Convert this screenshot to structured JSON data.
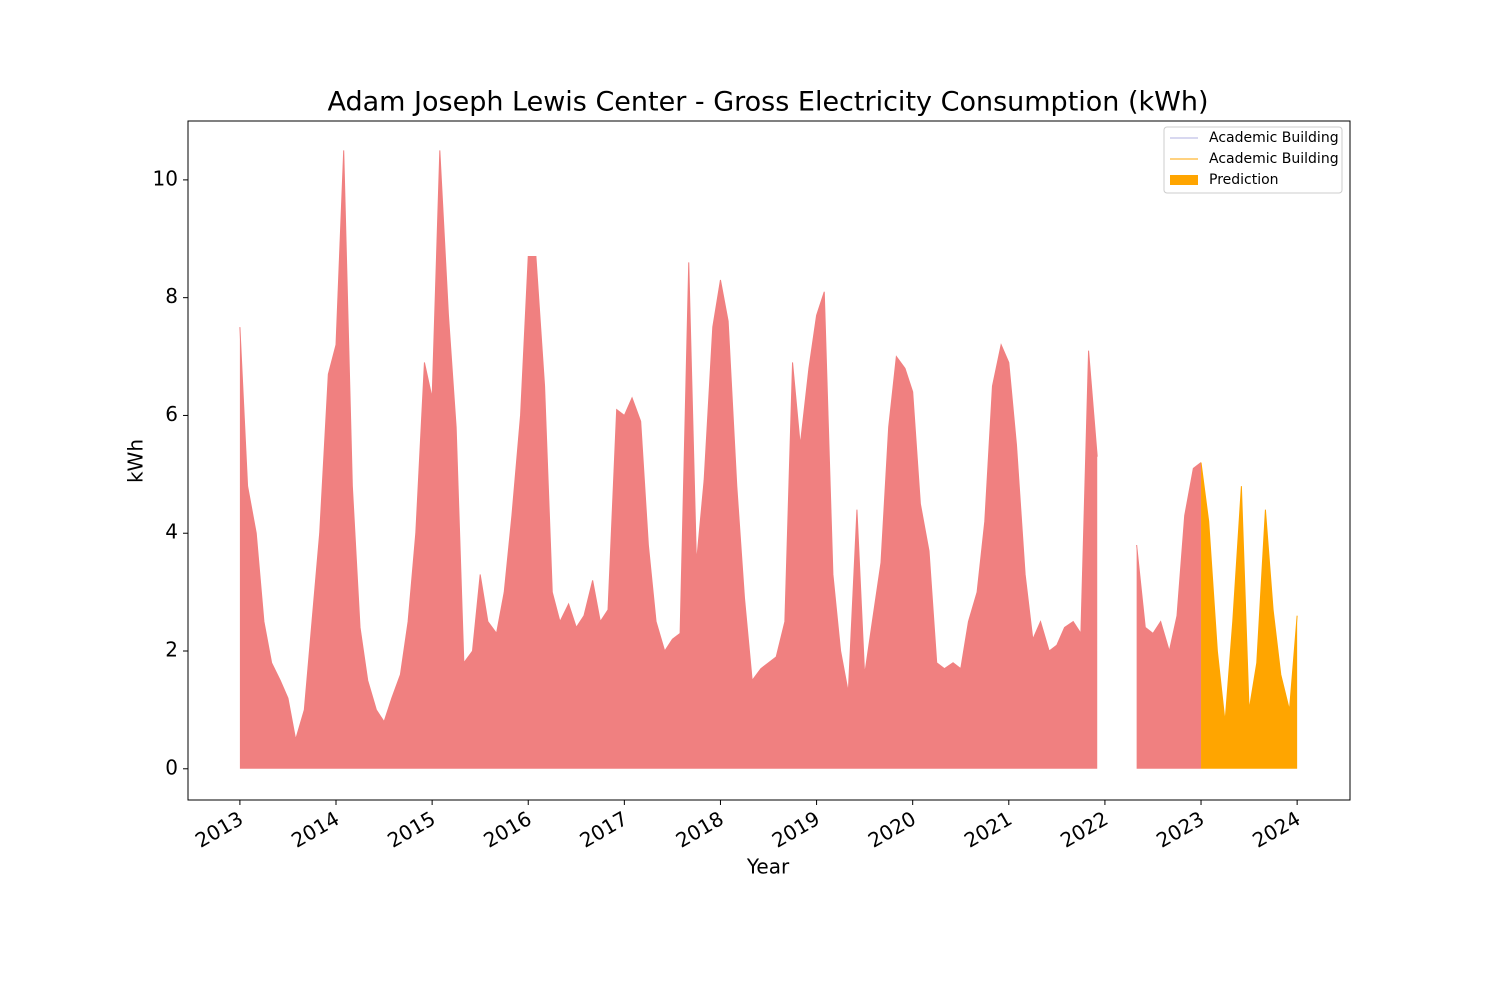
{
  "chart_data": {
    "type": "area",
    "title": "Adam Joseph Lewis Center - Gross Electricity Consumption (kWh)",
    "x_label": "Year",
    "y_label": "kWh",
    "xlim": [
      2012.46,
      2024.55
    ],
    "xticks": [
      2013,
      2014,
      2015,
      2016,
      2017,
      2018,
      2019,
      2020,
      2021,
      2022,
      2023,
      2024
    ],
    "ylim": [
      -0.53,
      11.0
    ],
    "yticks": [
      0,
      2,
      4,
      6,
      8,
      10
    ],
    "legend_position": "upper right",
    "legend": [
      {
        "name": "Academic Building",
        "color": "#b0b0e0",
        "style": "line"
      },
      {
        "name": "Academic Building",
        "color": "#ffa500",
        "style": "line"
      },
      {
        "name": "Prediction",
        "color": "#ffa500",
        "style": "patch"
      }
    ],
    "series": [
      {
        "color": "#f08080",
        "x": [
          2013.0,
          2013.08,
          2013.17,
          2013.25,
          2013.33,
          2013.42,
          2013.5,
          2013.58,
          2013.67,
          2013.75,
          2013.83,
          2013.92,
          2014.0,
          2014.08,
          2014.17,
          2014.25,
          2014.33,
          2014.42,
          2014.5,
          2014.58,
          2014.67,
          2014.75,
          2014.83,
          2014.92,
          2015.0,
          2015.08,
          2015.17,
          2015.25,
          2015.33,
          2015.42,
          2015.5,
          2015.58,
          2015.67,
          2015.75,
          2015.83,
          2015.92,
          2016.0,
          2016.08,
          2016.17,
          2016.25,
          2016.33,
          2016.42,
          2016.5,
          2016.58,
          2016.67,
          2016.75,
          2016.83,
          2016.92,
          2017.0,
          2017.08,
          2017.17,
          2017.25,
          2017.33,
          2017.42,
          2017.5,
          2017.58,
          2017.67,
          2017.75,
          2017.83,
          2017.92,
          2018.0,
          2018.08,
          2018.17,
          2018.25,
          2018.33,
          2018.42,
          2018.5,
          2018.58,
          2018.67,
          2018.75,
          2018.83,
          2018.92,
          2019.0,
          2019.08,
          2019.17,
          2019.25,
          2019.33,
          2019.42,
          2019.5,
          2019.58,
          2019.67,
          2019.75,
          2019.83,
          2019.92,
          2020.0,
          2020.08,
          2020.17,
          2020.25,
          2020.33,
          2020.42,
          2020.5,
          2020.58,
          2020.67,
          2020.75,
          2020.83,
          2020.92,
          2021.0,
          2021.08,
          2021.17,
          2021.25,
          2021.33,
          2021.42,
          2021.5,
          2021.58,
          2021.67,
          2021.75,
          2021.83,
          2021.92,
          2022.08,
          2022.33,
          2022.42,
          2022.5,
          2022.58,
          2022.67,
          2022.75,
          2022.83,
          2022.92,
          2023.0
        ],
        "values": [
          7.5,
          4.8,
          4.0,
          2.5,
          1.8,
          1.5,
          1.2,
          0.5,
          1.0,
          2.5,
          4.0,
          6.7,
          7.2,
          10.5,
          4.8,
          2.4,
          1.5,
          1.0,
          0.8,
          1.2,
          1.6,
          2.5,
          4.0,
          6.9,
          6.3,
          10.5,
          7.7,
          5.8,
          1.8,
          2.0,
          3.3,
          2.5,
          2.3,
          3.0,
          4.3,
          6.0,
          8.7,
          8.7,
          6.5,
          3.0,
          2.5,
          2.8,
          2.4,
          2.6,
          3.2,
          2.5,
          2.7,
          6.1,
          6.0,
          6.3,
          5.9,
          3.8,
          2.5,
          2.0,
          2.2,
          2.3,
          8.6,
          3.5,
          4.9,
          7.5,
          8.3,
          7.6,
          4.8,
          2.9,
          1.5,
          1.7,
          1.8,
          1.9,
          2.5,
          6.9,
          5.5,
          6.8,
          7.7,
          8.1,
          3.3,
          2.0,
          1.3,
          4.4,
          1.6,
          2.5,
          3.5,
          5.8,
          7.0,
          6.8,
          6.4,
          4.5,
          3.7,
          1.8,
          1.7,
          1.8,
          1.7,
          2.5,
          3.0,
          4.2,
          6.5,
          7.2,
          6.9,
          5.5,
          3.3,
          2.2,
          2.5,
          2.0,
          2.1,
          2.4,
          2.5,
          2.3,
          7.1,
          5.3,
          null,
          3.8,
          2.4,
          2.3,
          2.5,
          2.0,
          2.6,
          4.3,
          5.1,
          5.2
        ]
      },
      {
        "color": "#ffa500",
        "x": [
          2023.0,
          2023.08,
          2023.17,
          2023.25,
          2023.33,
          2023.42,
          2023.5,
          2023.58,
          2023.67,
          2023.75,
          2023.83,
          2023.92,
          2024.0
        ],
        "values": [
          5.2,
          4.2,
          2.0,
          0.8,
          2.5,
          4.8,
          1.0,
          1.8,
          4.4,
          2.7,
          1.6,
          1.0,
          2.6
        ]
      }
    ]
  }
}
